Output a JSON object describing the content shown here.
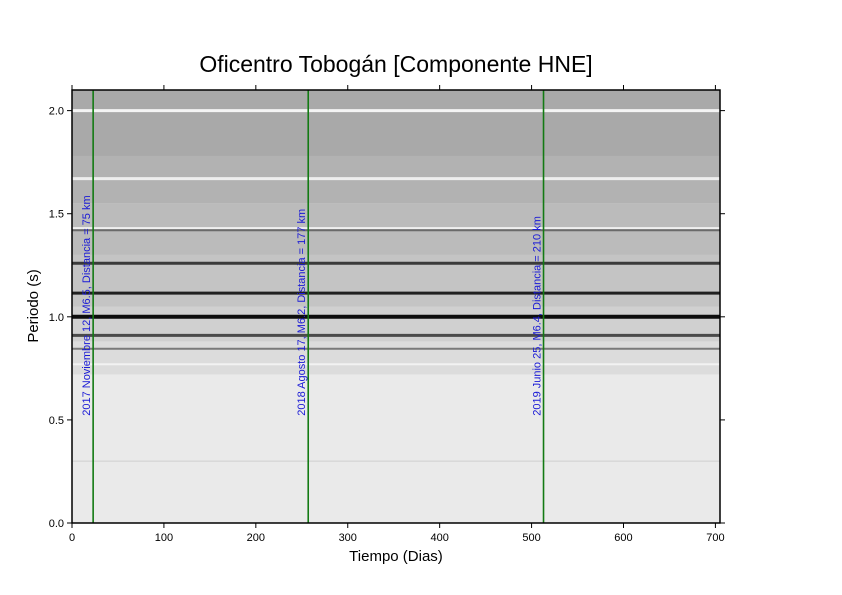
{
  "chart_data": {
    "type": "heatmap",
    "title": "Oficentro Tobogán [Componente HNE]",
    "xlabel": "Tiempo (Dias)",
    "ylabel": "Periodo (s)",
    "xlim": [
      0,
      705
    ],
    "ylim": [
      0,
      2.1
    ],
    "xticks": [
      0,
      100,
      200,
      300,
      400,
      500,
      600,
      700
    ],
    "yticks": [
      0.0,
      0.5,
      1.0,
      1.5,
      2.0
    ],
    "xtick_labels": [
      "0",
      "100",
      "200",
      "300",
      "400",
      "500",
      "600",
      "700"
    ],
    "ytick_labels": [
      "0.0",
      "0.5",
      "1.0",
      "1.5",
      "2.0"
    ],
    "colormap": "grayscale",
    "background_bands": [
      {
        "from": 1.78,
        "to": 2.1,
        "shade": "#a9a9a9"
      },
      {
        "from": 1.55,
        "to": 1.78,
        "shade": "#b2b2b2"
      },
      {
        "from": 1.3,
        "to": 1.55,
        "shade": "#bbbbbb"
      },
      {
        "from": 1.05,
        "to": 1.3,
        "shade": "#c4c4c4"
      },
      {
        "from": 0.88,
        "to": 1.05,
        "shade": "#d0d0d0"
      },
      {
        "from": 0.72,
        "to": 0.88,
        "shade": "#dcdcdc"
      },
      {
        "from": 0.0,
        "to": 0.72,
        "shade": "#eaeaea"
      }
    ],
    "horizontal_lines": [
      {
        "period": 2.0,
        "color": "#f4f4f4",
        "width": 3
      },
      {
        "period": 1.67,
        "color": "#eeeeee",
        "width": 3
      },
      {
        "period": 1.43,
        "color": "#f0f0f0",
        "width": 2
      },
      {
        "period": 1.42,
        "color": "#6a6a6a",
        "width": 2
      },
      {
        "period": 1.26,
        "color": "#3a3a3a",
        "width": 3
      },
      {
        "period": 1.115,
        "color": "#202020",
        "width": 3
      },
      {
        "period": 1.0,
        "color": "#0d0d0d",
        "width": 4
      },
      {
        "period": 0.91,
        "color": "#4a4a4a",
        "width": 3
      },
      {
        "period": 0.845,
        "color": "#7a7a7a",
        "width": 2
      },
      {
        "period": 0.77,
        "color": "#f2f2f2",
        "width": 2
      },
      {
        "period": 0.3,
        "color": "#cfcfcf",
        "width": 1
      }
    ],
    "events": [
      {
        "day": 23,
        "label": "2017 Noviembre 12, M6.5, Distancia = 75 km",
        "color": "#137a13"
      },
      {
        "day": 257,
        "label": "2018 Agosto 17, M6.2, Distancia = 177 km",
        "color": "#137a13"
      },
      {
        "day": 513,
        "label": "2019 Junio 25, M6.4, Distancia = 210 km",
        "color": "#137a13"
      }
    ]
  }
}
